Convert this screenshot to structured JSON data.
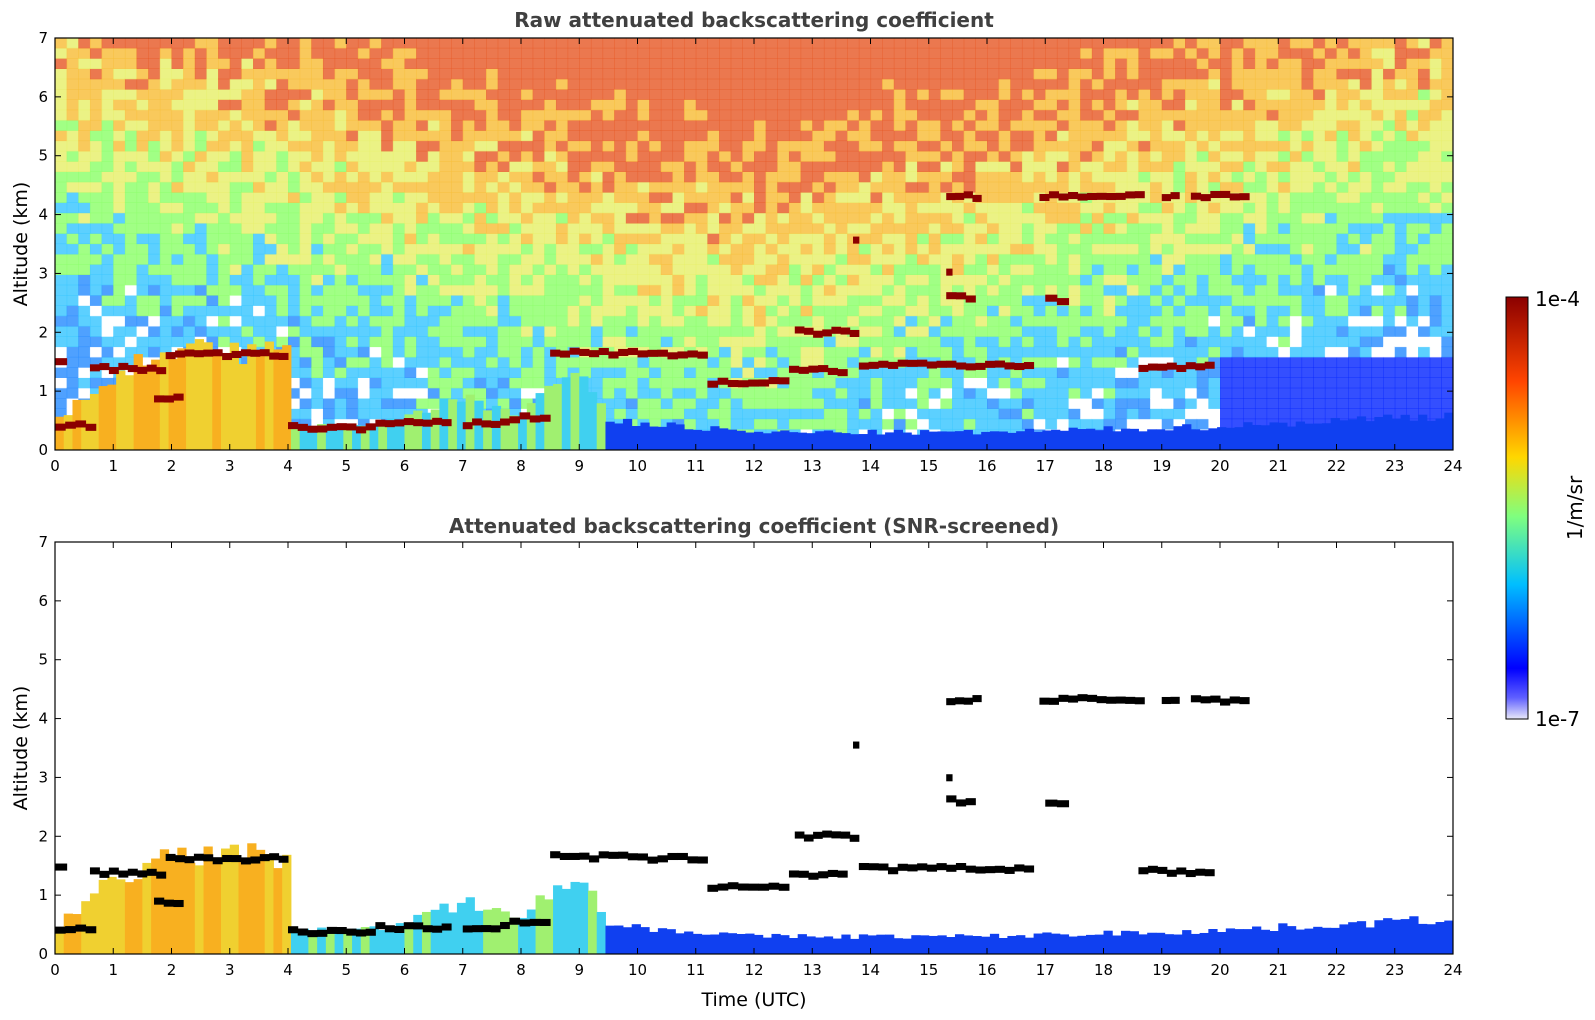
{
  "chart_data": [
    {
      "type": "heatmap",
      "title": "Raw attenuated backscattering coefficient",
      "xlabel": "",
      "ylabel": "Altitude (km)",
      "xlim": [
        0,
        24
      ],
      "ylim": [
        0,
        7
      ],
      "xticks": [
        "0",
        "1",
        "2",
        "3",
        "4",
        "5",
        "6",
        "7",
        "8",
        "9",
        "10",
        "11",
        "12",
        "13",
        "14",
        "15",
        "16",
        "17",
        "18",
        "19",
        "20",
        "21",
        "22",
        "23",
        "24"
      ],
      "yticks": [
        "0",
        "1",
        "2",
        "3",
        "4",
        "5",
        "6",
        "7"
      ],
      "screened": false,
      "background_aloft": "noisy signal (green/yellow/red speckle)",
      "boundary_layer_top_km": [
        [
          0,
          0.45
        ],
        [
          1,
          1.3
        ],
        [
          2,
          1.6
        ],
        [
          3,
          1.7
        ],
        [
          4,
          1.6
        ],
        [
          4.1,
          0.4
        ],
        [
          5,
          0.4
        ],
        [
          6,
          0.5
        ],
        [
          7,
          0.9
        ],
        [
          8,
          0.6
        ],
        [
          9,
          1.5
        ],
        [
          9.5,
          0.5
        ],
        [
          12,
          0.3
        ],
        [
          16,
          0.3
        ],
        [
          20,
          0.4
        ],
        [
          24,
          0.6
        ]
      ],
      "cloud_layers_km": [
        {
          "t0": 0.0,
          "t1": 0.7,
          "alt": 0.42
        },
        {
          "t0": 0.0,
          "t1": 0.2,
          "alt": 1.48
        },
        {
          "t0": 0.6,
          "t1": 1.9,
          "alt": 1.38
        },
        {
          "t0": 1.9,
          "t1": 4.0,
          "alt": 1.62
        },
        {
          "t0": 1.7,
          "t1": 2.2,
          "alt": 0.88
        },
        {
          "t0": 4.0,
          "t1": 5.5,
          "alt": 0.38
        },
        {
          "t0": 5.5,
          "t1": 6.8,
          "alt": 0.45
        },
        {
          "t0": 7.0,
          "t1": 7.8,
          "alt": 0.45
        },
        {
          "t0": 7.8,
          "t1": 8.5,
          "alt": 0.55
        },
        {
          "t0": 8.5,
          "t1": 10.0,
          "alt": 1.65
        },
        {
          "t0": 10.0,
          "t1": 11.2,
          "alt": 1.62
        },
        {
          "t0": 11.2,
          "t1": 12.6,
          "alt": 1.15
        },
        {
          "t0": 12.6,
          "t1": 13.6,
          "alt": 1.35
        },
        {
          "t0": 12.7,
          "t1": 13.8,
          "alt": 2.0
        },
        {
          "t0": 13.8,
          "t1": 16.8,
          "alt": 1.45
        },
        {
          "t0": 15.3,
          "t1": 15.8,
          "alt": 2.6
        },
        {
          "t0": 17.0,
          "t1": 17.4,
          "alt": 2.55
        },
        {
          "t0": 15.3,
          "t1": 15.9,
          "alt": 4.3
        },
        {
          "t0": 16.9,
          "t1": 18.7,
          "alt": 4.32
        },
        {
          "t0": 19.0,
          "t1": 19.3,
          "alt": 4.32
        },
        {
          "t0": 19.5,
          "t1": 20.5,
          "alt": 4.32
        },
        {
          "t0": 18.6,
          "t1": 19.9,
          "alt": 1.4
        },
        {
          "t0": 15.3,
          "t1": 15.4,
          "alt": 3.0
        },
        {
          "t0": 13.7,
          "t1": 13.8,
          "alt": 3.55
        }
      ]
    },
    {
      "type": "heatmap",
      "title": "Attenuated backscattering coefficient (SNR-screened)",
      "xlabel": "Time (UTC)",
      "ylabel": "Altitude (km)",
      "xlim": [
        0,
        24
      ],
      "ylim": [
        0,
        7
      ],
      "xticks": [
        "0",
        "1",
        "2",
        "3",
        "4",
        "5",
        "6",
        "7",
        "8",
        "9",
        "10",
        "11",
        "12",
        "13",
        "14",
        "15",
        "16",
        "17",
        "18",
        "19",
        "20",
        "21",
        "22",
        "23",
        "24"
      ],
      "yticks": [
        "0",
        "1",
        "2",
        "3",
        "4",
        "5",
        "6",
        "7"
      ],
      "screened": true,
      "background_aloft": "white (screened out)"
    }
  ],
  "colorbar": {
    "label": "1/m/sr",
    "max_label": "1e-4",
    "min_label": "1e-7",
    "scale": "log",
    "colormap": "jet",
    "colors": [
      "#e8e8f8",
      "#0000ff",
      "#00bfff",
      "#7fff7f",
      "#ffd700",
      "#ff4500",
      "#8b0000"
    ]
  }
}
